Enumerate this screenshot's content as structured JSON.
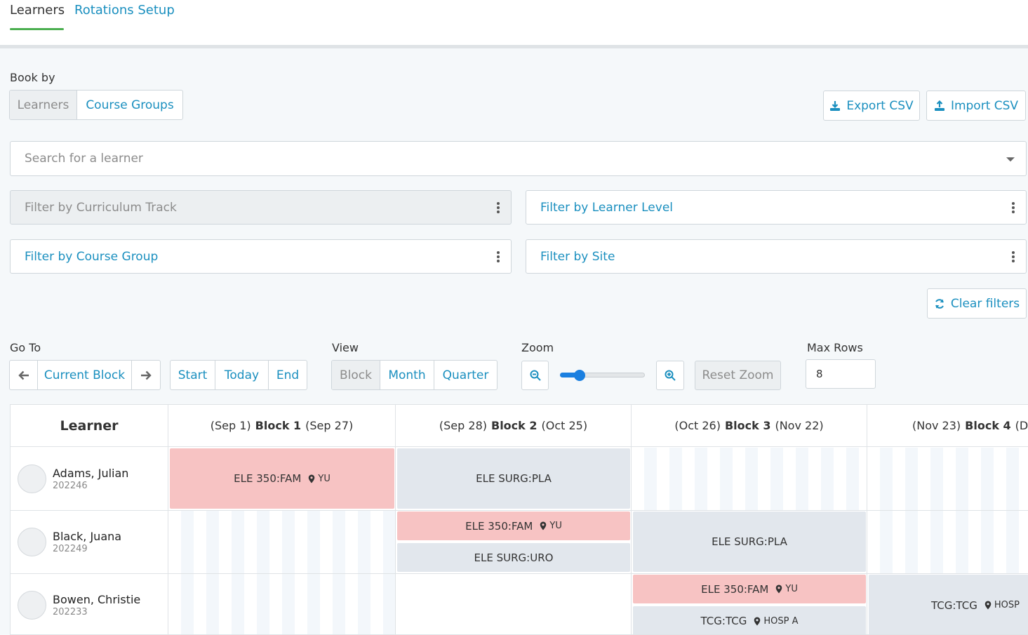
{
  "tabs": [
    {
      "label": "Learners",
      "active": true
    },
    {
      "label": "Rotations Setup",
      "active": false
    }
  ],
  "book_by": {
    "label": "Book by",
    "options": [
      "Learners",
      "Course Groups"
    ],
    "selected": "Learners"
  },
  "actions": {
    "export_label": "Export CSV",
    "import_label": "Import CSV",
    "clear_filters_label": "Clear filters"
  },
  "search": {
    "placeholder": "Search for a learner"
  },
  "filters": {
    "curriculum_track": "Filter by Curriculum Track",
    "learner_level": "Filter by Learner Level",
    "course_group": "Filter by Course Group",
    "site": "Filter by Site"
  },
  "goto": {
    "label": "Go To",
    "current_label": "Current Block",
    "start_label": "Start",
    "today_label": "Today",
    "end_label": "End"
  },
  "view": {
    "label": "View",
    "options": [
      "Block",
      "Month",
      "Quarter"
    ],
    "selected": "Block"
  },
  "zoom": {
    "label": "Zoom",
    "level": 0.2,
    "reset_label": "Reset Zoom"
  },
  "max_rows": {
    "label": "Max Rows",
    "value": "8"
  },
  "grid": {
    "learner_header": "Learner",
    "blocks": [
      {
        "start": "(Sep 1)",
        "name": "Block 1",
        "end": "(Sep 27)"
      },
      {
        "start": "(Sep 28)",
        "name": "Block 2",
        "end": "(Oct 25)"
      },
      {
        "start": "(Oct 26)",
        "name": "Block 3",
        "end": "(Nov 22)"
      },
      {
        "start": "(Nov 23)",
        "name": "Block 4",
        "end": "(De"
      }
    ],
    "learners": [
      {
        "name": "Adams, Julian",
        "id": "202246"
      },
      {
        "name": "Black, Juana",
        "id": "202249"
      },
      {
        "name": "Bowen, Christie",
        "id": "202233"
      }
    ],
    "events": [
      {
        "label": "ELE 350:FAM",
        "site": "YU"
      },
      {
        "label": "ELE SURG:PLA",
        "site": ""
      },
      {
        "label": "ELE 350:FAM",
        "site": "YU"
      },
      {
        "label": "ELE SURG:URO",
        "site": ""
      },
      {
        "label": "ELE SURG:PLA",
        "site": ""
      },
      {
        "label": "ELE 350:FAM",
        "site": "YU"
      },
      {
        "label": "TCG:TCG",
        "site": "HOSP A"
      },
      {
        "label": "TCG:TCG",
        "site": "HOSP"
      }
    ]
  },
  "colors": {
    "accent": "#1a8fbf",
    "tab_underline": "#4caf50",
    "event_pink": "#f7c3c3",
    "event_gray": "#e2e7ed"
  }
}
